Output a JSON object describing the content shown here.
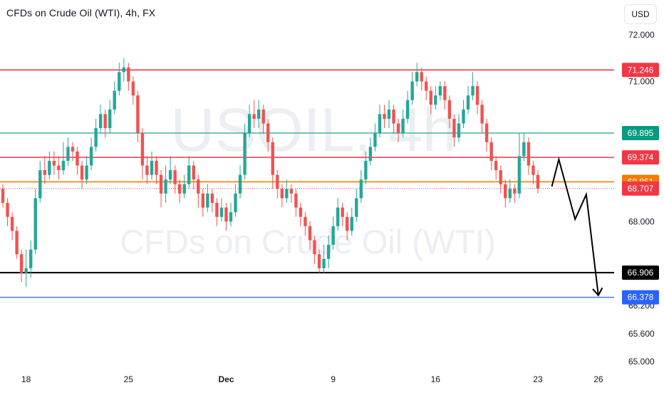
{
  "header": {
    "symbol_title": "CFDs on Crude Oil (WTI), 4h, FX",
    "currency_button": "USD"
  },
  "watermark": {
    "symbol": "USOIL, 4h",
    "description": "CFDs on Crude Oil (WTI)"
  },
  "colors": {
    "up": "#26a69a",
    "down": "#ef5350",
    "resistance": "#f23645",
    "support": "#000000",
    "teal_level": "#089981",
    "orange_level": "#f57c00",
    "blue_level": "#2962ff",
    "last_price": "#f23645"
  },
  "chart_data": {
    "type": "candlestick",
    "title": "CFDs on Crude Oil (WTI), 4h, FX",
    "timeframe": "4h",
    "currency": "USD",
    "x_ticks": [
      {
        "label": "18",
        "bar": 6
      },
      {
        "label": "25",
        "bar": 28
      },
      {
        "label": "Dec",
        "bar": 49
      },
      {
        "label": "9",
        "bar": 72
      },
      {
        "label": "16",
        "bar": 94
      },
      {
        "label": "23",
        "bar": 116
      },
      {
        "label": "26",
        "bar": 129
      }
    ],
    "y_ticks": [
      72.0,
      71.0,
      68.0,
      66.2,
      65.6,
      65.0
    ],
    "y_tick_labels": [
      "72.000",
      "71.000",
      "68.000",
      "66.200",
      "65.600",
      "65.000"
    ],
    "ylim": [
      64.85,
      72.5
    ],
    "horizontal_levels": [
      {
        "value": 71.246,
        "label": "71.246",
        "color": "#f23645",
        "style": "solid"
      },
      {
        "value": 69.895,
        "label": "69.895",
        "color": "#089981",
        "style": "solid"
      },
      {
        "value": 69.374,
        "label": "69.374",
        "color": "#f23645",
        "style": "solid"
      },
      {
        "value": 68.851,
        "label": "68.851",
        "color": "#f57c00",
        "style": "solid"
      },
      {
        "value": 68.707,
        "label": "68.707",
        "color": "#f23645",
        "style": "dotted"
      },
      {
        "value": 66.906,
        "label": "66.906",
        "color": "#000000",
        "style": "solid"
      },
      {
        "value": 66.378,
        "label": "66.378",
        "color": "#2962ff",
        "style": "solid"
      }
    ],
    "projection_path": [
      {
        "bar": 119,
        "price": 68.75
      },
      {
        "bar": 120.5,
        "price": 69.33
      },
      {
        "bar": 124,
        "price": 68.05
      },
      {
        "bar": 126.4,
        "price": 68.58
      },
      {
        "bar": 129,
        "price": 66.42
      }
    ],
    "candles": [
      [
        68.9,
        68.7,
        69.1,
        68.6
      ],
      [
        68.7,
        68.4,
        68.8,
        68.3
      ],
      [
        68.4,
        68.1,
        68.5,
        67.9
      ],
      [
        68.1,
        67.8,
        68.2,
        67.6
      ],
      [
        67.8,
        67.3,
        67.9,
        67.2
      ],
      [
        67.3,
        66.9,
        67.4,
        66.7
      ],
      [
        66.9,
        67.0,
        67.4,
        66.6
      ],
      [
        67.0,
        67.4,
        67.6,
        66.8
      ],
      [
        67.4,
        68.5,
        68.7,
        67.3
      ],
      [
        68.5,
        69.1,
        69.3,
        68.4
      ],
      [
        69.1,
        69.0,
        69.4,
        68.8
      ],
      [
        69.0,
        69.3,
        69.5,
        68.9
      ],
      [
        69.3,
        69.2,
        69.5,
        69.0
      ],
      [
        69.2,
        69.1,
        69.4,
        68.9
      ],
      [
        69.1,
        69.3,
        69.7,
        69.0
      ],
      [
        69.3,
        69.6,
        69.8,
        69.2
      ],
      [
        69.6,
        69.5,
        69.7,
        69.3
      ],
      [
        69.5,
        69.2,
        69.6,
        69.0
      ],
      [
        69.2,
        68.9,
        69.3,
        68.7
      ],
      [
        68.9,
        69.2,
        69.4,
        68.8
      ],
      [
        69.2,
        69.6,
        69.8,
        69.1
      ],
      [
        69.6,
        70.0,
        70.2,
        69.5
      ],
      [
        70.0,
        70.3,
        70.5,
        69.9
      ],
      [
        70.3,
        70.0,
        70.4,
        69.8
      ],
      [
        70.0,
        70.4,
        70.6,
        69.9
      ],
      [
        70.4,
        70.8,
        71.0,
        70.3
      ],
      [
        70.8,
        71.2,
        71.4,
        70.7
      ],
      [
        71.2,
        71.3,
        71.5,
        71.0
      ],
      [
        71.3,
        71.0,
        71.4,
        70.8
      ],
      [
        71.0,
        70.7,
        71.1,
        70.5
      ],
      [
        70.7,
        69.9,
        70.8,
        69.7
      ],
      [
        69.9,
        69.2,
        70.0,
        68.9
      ],
      [
        69.2,
        69.0,
        69.4,
        68.8
      ],
      [
        69.0,
        69.3,
        69.5,
        68.9
      ],
      [
        69.3,
        69.0,
        69.4,
        68.8
      ],
      [
        69.0,
        68.6,
        69.1,
        68.3
      ],
      [
        68.6,
        68.9,
        69.2,
        68.4
      ],
      [
        68.9,
        69.1,
        69.4,
        68.8
      ],
      [
        69.1,
        68.8,
        69.2,
        68.6
      ],
      [
        68.8,
        68.6,
        68.9,
        68.4
      ],
      [
        68.6,
        68.8,
        69.0,
        68.5
      ],
      [
        68.8,
        69.2,
        69.4,
        68.7
      ],
      [
        69.2,
        68.9,
        69.3,
        68.7
      ],
      [
        68.9,
        68.6,
        69.0,
        68.3
      ],
      [
        68.6,
        68.3,
        68.7,
        68.1
      ],
      [
        68.3,
        68.6,
        68.8,
        68.2
      ],
      [
        68.6,
        68.4,
        68.7,
        68.2
      ],
      [
        68.4,
        68.1,
        68.5,
        67.9
      ],
      [
        68.1,
        68.3,
        68.5,
        68.0
      ],
      [
        68.3,
        68.0,
        68.4,
        67.8
      ],
      [
        68.0,
        68.2,
        68.4,
        67.9
      ],
      [
        68.2,
        68.6,
        68.8,
        68.1
      ],
      [
        68.6,
        69.0,
        69.2,
        68.5
      ],
      [
        69.0,
        69.9,
        70.1,
        68.9
      ],
      [
        69.9,
        70.3,
        70.5,
        69.8
      ],
      [
        70.3,
        70.2,
        70.6,
        70.0
      ],
      [
        70.2,
        70.4,
        70.6,
        70.0
      ],
      [
        70.4,
        70.1,
        70.5,
        69.9
      ],
      [
        70.1,
        69.7,
        70.2,
        69.5
      ],
      [
        69.7,
        69.0,
        69.8,
        68.7
      ],
      [
        69.0,
        68.7,
        69.1,
        68.5
      ],
      [
        68.7,
        68.5,
        68.8,
        68.3
      ],
      [
        68.5,
        68.7,
        68.9,
        68.4
      ],
      [
        68.7,
        68.6,
        68.8,
        68.4
      ],
      [
        68.6,
        68.3,
        68.7,
        68.1
      ],
      [
        68.3,
        68.1,
        68.4,
        67.9
      ],
      [
        68.1,
        67.9,
        68.2,
        67.7
      ],
      [
        67.9,
        67.6,
        68.0,
        67.4
      ],
      [
        67.6,
        67.3,
        67.7,
        67.1
      ],
      [
        67.3,
        67.0,
        67.4,
        66.9
      ],
      [
        67.0,
        67.2,
        67.5,
        66.9
      ],
      [
        67.2,
        67.5,
        67.7,
        67.0
      ],
      [
        67.5,
        67.9,
        68.1,
        67.4
      ],
      [
        67.9,
        68.3,
        68.5,
        67.8
      ],
      [
        68.3,
        68.1,
        68.4,
        67.9
      ],
      [
        68.1,
        67.8,
        68.2,
        67.6
      ],
      [
        67.8,
        68.1,
        68.3,
        67.7
      ],
      [
        68.1,
        68.5,
        68.7,
        68.0
      ],
      [
        68.5,
        68.9,
        69.1,
        68.4
      ],
      [
        68.9,
        69.3,
        69.5,
        68.8
      ],
      [
        69.3,
        69.6,
        69.8,
        69.2
      ],
      [
        69.6,
        69.9,
        70.1,
        69.5
      ],
      [
        69.9,
        70.3,
        70.5,
        69.8
      ],
      [
        70.3,
        70.2,
        70.5,
        70.0
      ],
      [
        70.2,
        70.4,
        70.6,
        70.0
      ],
      [
        70.4,
        70.1,
        70.5,
        69.9
      ],
      [
        70.1,
        69.9,
        70.2,
        69.7
      ],
      [
        69.9,
        70.2,
        70.4,
        69.8
      ],
      [
        70.2,
        70.6,
        70.8,
        70.1
      ],
      [
        70.6,
        71.0,
        71.2,
        70.5
      ],
      [
        71.0,
        71.2,
        71.4,
        70.9
      ],
      [
        71.2,
        71.0,
        71.3,
        70.8
      ],
      [
        71.0,
        70.8,
        71.1,
        70.6
      ],
      [
        70.8,
        70.5,
        70.9,
        70.3
      ],
      [
        70.5,
        70.7,
        70.9,
        70.4
      ],
      [
        70.7,
        70.9,
        71.0,
        70.6
      ],
      [
        70.9,
        70.6,
        71.0,
        70.4
      ],
      [
        70.6,
        70.2,
        70.7,
        70.0
      ],
      [
        70.2,
        69.8,
        70.3,
        69.6
      ],
      [
        69.8,
        70.1,
        70.3,
        69.7
      ],
      [
        70.1,
        70.4,
        70.6,
        70.0
      ],
      [
        70.4,
        70.7,
        70.9,
        70.3
      ],
      [
        70.7,
        70.9,
        71.2,
        70.6
      ],
      [
        70.9,
        70.5,
        71.0,
        70.3
      ],
      [
        70.5,
        70.1,
        70.6,
        69.9
      ],
      [
        70.1,
        69.7,
        70.2,
        69.5
      ],
      [
        69.7,
        69.3,
        69.8,
        69.1
      ],
      [
        69.3,
        69.1,
        69.4,
        68.9
      ],
      [
        69.1,
        68.8,
        69.2,
        68.6
      ],
      [
        68.8,
        68.5,
        68.9,
        68.3
      ],
      [
        68.5,
        68.7,
        68.9,
        68.4
      ],
      [
        68.7,
        68.6,
        68.8,
        68.4
      ],
      [
        68.6,
        69.4,
        69.9,
        68.5
      ],
      [
        69.4,
        69.7,
        69.9,
        69.3
      ],
      [
        69.7,
        69.2,
        69.8,
        69.0
      ],
      [
        69.2,
        69.0,
        69.3,
        68.8
      ],
      [
        69.0,
        68.707,
        69.1,
        68.6
      ]
    ]
  }
}
